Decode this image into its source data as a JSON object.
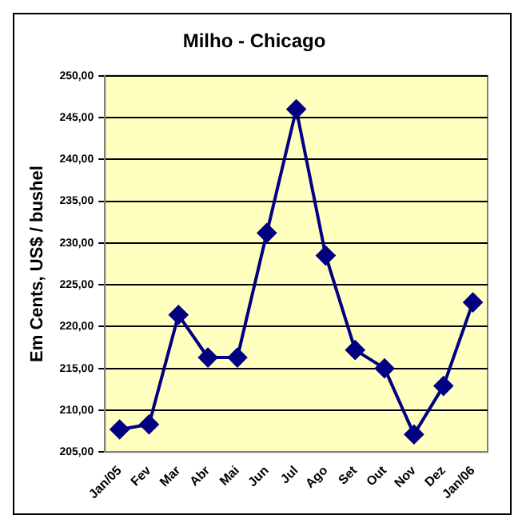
{
  "chart_data": {
    "type": "line",
    "title": "Milho - Chicago",
    "ylabel": "Em Cents, US$ / bushel",
    "categories": [
      "Jan/05",
      "Fev",
      "Mar",
      "Abr",
      "Mai",
      "Jun",
      "Jul",
      "Ago",
      "Set",
      "Out",
      "Nov",
      "Dez",
      "Jan/06"
    ],
    "series": [
      {
        "color": "#000080",
        "values": [
          207.7,
          208.3,
          221.4,
          216.3,
          216.3,
          231.2,
          246.0,
          228.5,
          217.2,
          215.0,
          207.1,
          212.9,
          222.9
        ]
      }
    ],
    "ylim": [
      205,
      250
    ],
    "yticks": [
      {
        "value": 205,
        "label": "205,00"
      },
      {
        "value": 210,
        "label": "210,00"
      },
      {
        "value": 215,
        "label": "215,00"
      },
      {
        "value": 220,
        "label": "220,00"
      },
      {
        "value": 225,
        "label": "225,00"
      },
      {
        "value": 230,
        "label": "230,00"
      },
      {
        "value": 235,
        "label": "235,00"
      },
      {
        "value": 240,
        "label": "240,00"
      },
      {
        "value": 245,
        "label": "245,00"
      },
      {
        "value": 250,
        "label": "250,00"
      }
    ],
    "grid": "y",
    "legend": false,
    "marker": "diamond",
    "line_style": "solid"
  }
}
